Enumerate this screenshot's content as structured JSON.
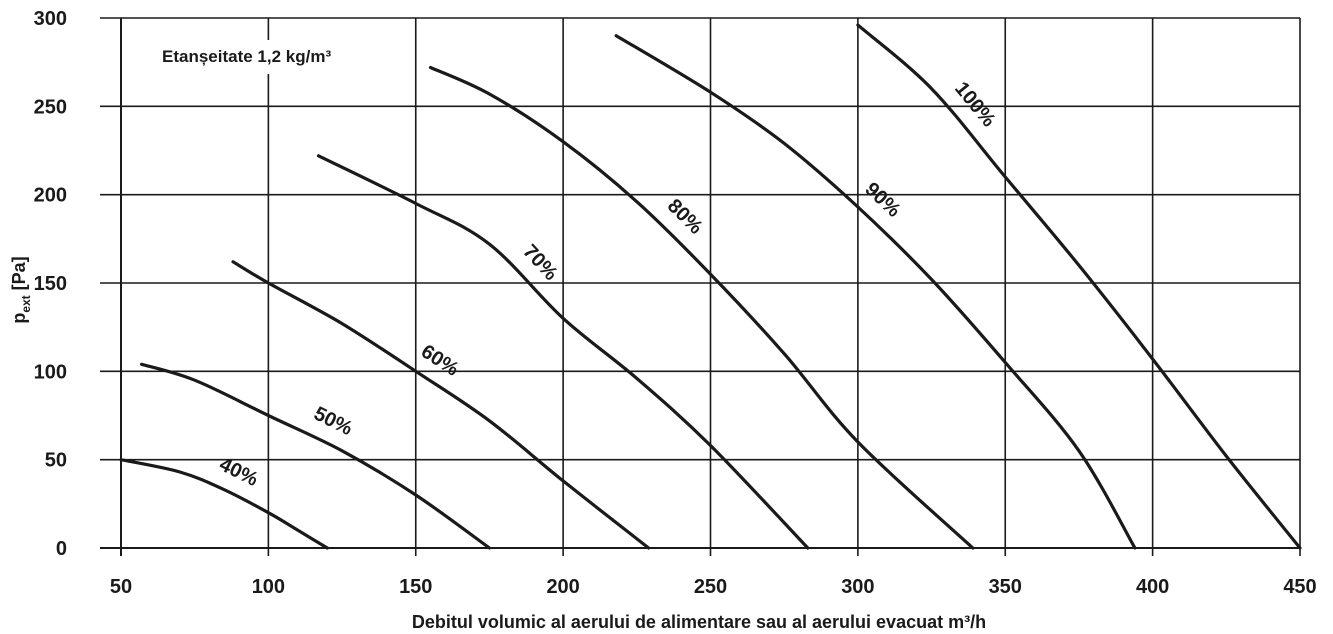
{
  "chart_data": {
    "type": "line",
    "annotation": "Etanșeitate 1,2 kg/m³",
    "xlabel": "Debitul volumic al aerului de alimentare sau al aerului evacuat m³/h",
    "ylabel_main": "p",
    "ylabel_sub": "ext",
    "ylabel_unit": " [Pa]",
    "xlim": [
      50,
      450
    ],
    "ylim": [
      0,
      300
    ],
    "xticks": [
      50,
      100,
      150,
      200,
      250,
      300,
      350,
      400,
      450
    ],
    "yticks": [
      0,
      50,
      100,
      150,
      200,
      250,
      300
    ],
    "grid": true,
    "series": [
      {
        "name": "40%",
        "points": [
          [
            50,
            50
          ],
          [
            70,
            43
          ],
          [
            85,
            33
          ],
          [
            100,
            20
          ],
          [
            110,
            10
          ],
          [
            120,
            0
          ]
        ]
      },
      {
        "name": "50%",
        "points": [
          [
            57,
            104
          ],
          [
            75,
            95
          ],
          [
            100,
            75
          ],
          [
            125,
            55
          ],
          [
            150,
            30
          ],
          [
            175,
            0
          ]
        ]
      },
      {
        "name": "60%",
        "points": [
          [
            88,
            162
          ],
          [
            100,
            150
          ],
          [
            125,
            127
          ],
          [
            150,
            100
          ],
          [
            175,
            72
          ],
          [
            200,
            38
          ],
          [
            229,
            0
          ]
        ]
      },
      {
        "name": "70%",
        "points": [
          [
            117,
            222
          ],
          [
            150,
            195
          ],
          [
            175,
            172
          ],
          [
            200,
            130
          ],
          [
            225,
            96
          ],
          [
            250,
            58
          ],
          [
            283,
            0
          ]
        ]
      },
      {
        "name": "80%",
        "points": [
          [
            155,
            272
          ],
          [
            175,
            257
          ],
          [
            200,
            230
          ],
          [
            225,
            196
          ],
          [
            250,
            155
          ],
          [
            275,
            110
          ],
          [
            300,
            60
          ],
          [
            339,
            0
          ]
        ]
      },
      {
        "name": "90%",
        "points": [
          [
            218,
            290
          ],
          [
            250,
            258
          ],
          [
            275,
            229
          ],
          [
            300,
            193
          ],
          [
            325,
            152
          ],
          [
            350,
            105
          ],
          [
            375,
            55
          ],
          [
            394,
            0
          ]
        ]
      },
      {
        "name": "100%",
        "points": [
          [
            300,
            296
          ],
          [
            325,
            260
          ],
          [
            350,
            210
          ],
          [
            375,
            160
          ],
          [
            400,
            107
          ],
          [
            425,
            52
          ],
          [
            450,
            0
          ]
        ]
      }
    ]
  }
}
